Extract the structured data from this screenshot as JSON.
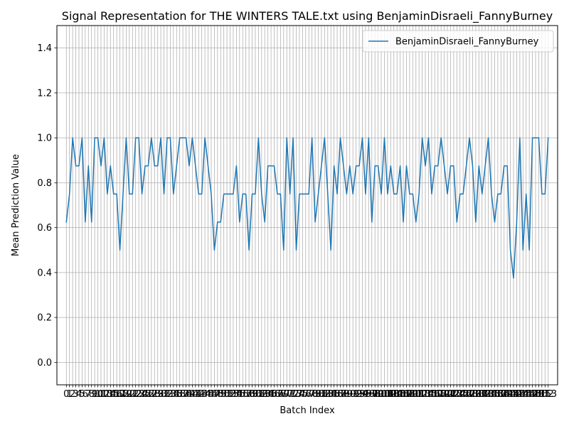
{
  "chart_data": {
    "type": "line",
    "title": "Signal Representation for THE WINTERS TALE.txt using BenjaminDisraeli_FannyBurney",
    "xlabel": "Batch Index",
    "ylabel": "Mean Prediction Value",
    "ylim": [
      -0.1,
      1.5
    ],
    "xlim": [
      -3,
      156
    ],
    "yticks": [
      0.0,
      0.2,
      0.4,
      0.6,
      0.8,
      1.0,
      1.2,
      1.4
    ],
    "ytick_labels": [
      "0.0",
      "0.2",
      "0.4",
      "0.6",
      "0.8",
      "1.0",
      "1.2",
      "1.4"
    ],
    "grid": true,
    "legend_position": "top-right",
    "series": [
      {
        "name": "BenjaminDisraeli_FannyBurney",
        "color": "#1f77b4",
        "values": [
          0.625,
          0.75,
          1.0,
          0.875,
          0.875,
          1.0,
          0.625,
          0.875,
          0.625,
          1.0,
          1.0,
          0.875,
          1.0,
          0.75,
          0.875,
          0.75,
          0.75,
          0.5,
          0.75,
          1.0,
          0.75,
          0.75,
          1.0,
          1.0,
          0.75,
          0.875,
          0.875,
          1.0,
          0.875,
          0.875,
          1.0,
          0.75,
          1.0,
          1.0,
          0.75,
          0.875,
          1.0,
          1.0,
          1.0,
          0.875,
          1.0,
          0.875,
          0.75,
          0.75,
          1.0,
          0.875,
          0.75,
          0.5,
          0.625,
          0.625,
          0.75,
          0.75,
          0.75,
          0.75,
          0.875,
          0.625,
          0.75,
          0.75,
          0.5,
          0.75,
          0.75,
          1.0,
          0.75,
          0.625,
          0.875,
          0.875,
          0.875,
          0.75,
          0.75,
          0.5,
          1.0,
          0.75,
          1.0,
          0.5,
          0.75,
          0.75,
          0.75,
          0.75,
          1.0,
          0.625,
          0.75,
          0.875,
          1.0,
          0.75,
          0.5,
          0.875,
          0.75,
          1.0,
          0.875,
          0.75,
          0.875,
          0.75,
          0.875,
          0.875,
          1.0,
          0.75,
          1.0,
          0.625,
          0.875,
          0.875,
          0.75,
          1.0,
          0.75,
          0.875,
          0.75,
          0.75,
          0.875,
          0.625,
          0.875,
          0.75,
          0.75,
          0.625,
          0.75,
          1.0,
          0.875,
          1.0,
          0.75,
          0.875,
          0.875,
          1.0,
          0.875,
          0.75,
          0.875,
          0.875,
          0.625,
          0.75,
          0.75,
          0.875,
          1.0,
          0.875,
          0.625,
          0.875,
          0.75,
          0.875,
          1.0,
          0.75,
          0.625,
          0.75,
          0.75,
          0.875,
          0.875,
          0.5,
          0.375,
          0.625,
          1.0,
          0.5,
          0.75,
          0.5,
          1.0,
          1.0,
          1.0,
          0.75,
          0.75,
          1.0
        ]
      }
    ]
  }
}
